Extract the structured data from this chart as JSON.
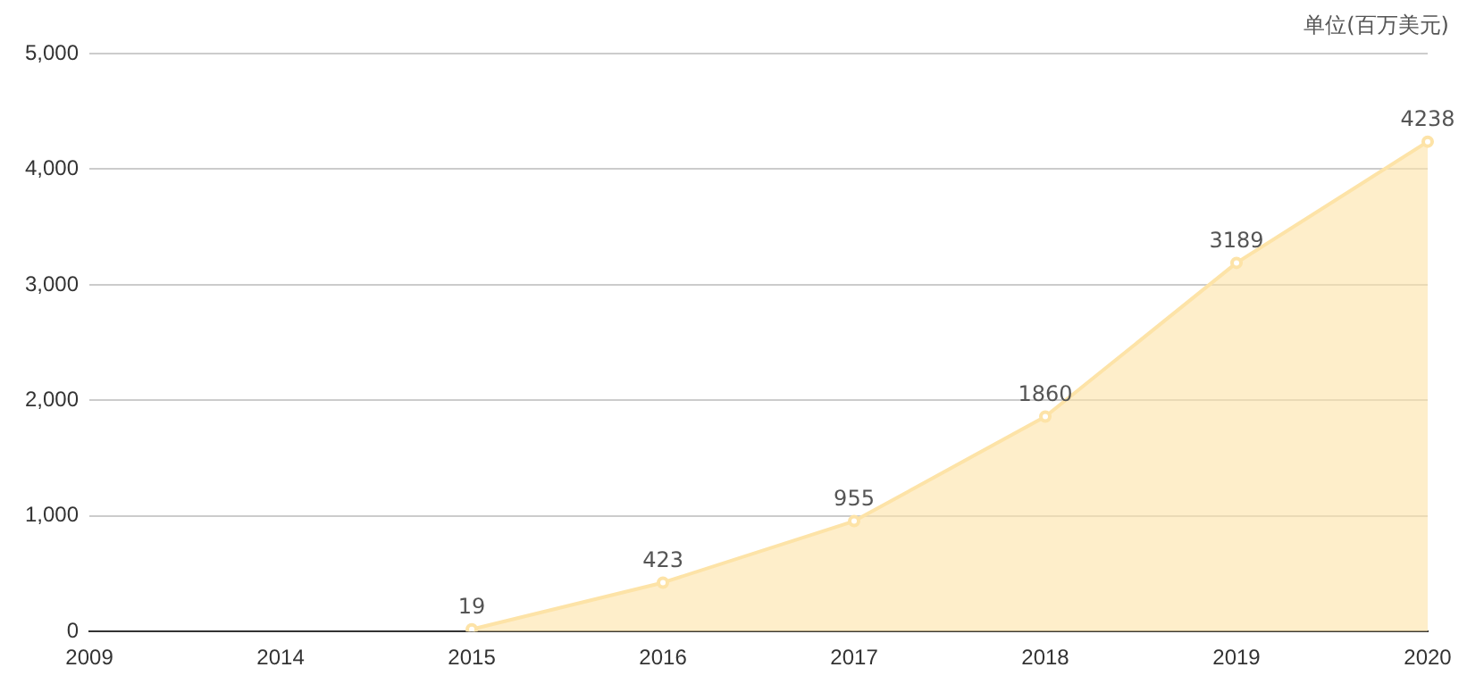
{
  "chart_data": {
    "type": "area",
    "ylabel": "单位(百万美元)",
    "categories": [
      "2009",
      "2014",
      "2015",
      "2016",
      "2017",
      "2018",
      "2019",
      "2020"
    ],
    "series": [
      {
        "color": "#fde3a7",
        "values": [
          null,
          null,
          19,
          423,
          955,
          1860,
          3189,
          4238
        ]
      }
    ],
    "ylim": [
      0,
      5000
    ],
    "yticks": [
      {
        "value": 0,
        "label": "0"
      },
      {
        "value": 1000,
        "label": "1,000"
      },
      {
        "value": 2000,
        "label": "2,000"
      },
      {
        "value": 3000,
        "label": "3,000"
      },
      {
        "value": 4000,
        "label": "4,000"
      },
      {
        "value": 5000,
        "label": "5,000"
      }
    ],
    "grid": "y",
    "legend": false,
    "marker": "circle",
    "data_labels": true
  }
}
